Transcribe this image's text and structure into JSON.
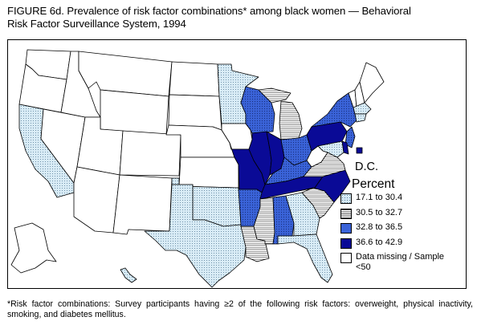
{
  "title": {
    "line1": "FIGURE 6d. Prevalence of risk factor combinations* among black women — Behavioral",
    "line2": "Risk Factor Surveillance System, 1994"
  },
  "dc_label": "D.C.",
  "legend": {
    "title": "Percent",
    "items": [
      {
        "key": "c1",
        "label": "17.1 to 30.4"
      },
      {
        "key": "c2",
        "label": "30.5 to 32.7"
      },
      {
        "key": "c3",
        "label": "32.8 to 36.5"
      },
      {
        "key": "c4",
        "label": "36.6 to 42.9"
      },
      {
        "key": "missing",
        "label": "Data missing / Sample <50"
      }
    ]
  },
  "colors": {
    "c1": "#d6eaf5",
    "c2": "#ffffff",
    "c3": "#3a63d8",
    "c4": "#0a0a96",
    "missing": "#ffffff"
  },
  "state_categories": {
    "WA": "missing",
    "OR": "missing",
    "CA": "c1",
    "NV": "missing",
    "ID": "missing",
    "MT": "missing",
    "WY": "missing",
    "UT": "missing",
    "AZ": "missing",
    "CO": "missing",
    "NM": "missing",
    "ND": "missing",
    "SD": "missing",
    "NE": "missing",
    "KS": "missing",
    "OK": "c1",
    "TX": "c1",
    "MN": "c1",
    "IA": "missing",
    "MO": "c4",
    "AR": "c3",
    "LA": "c2",
    "WI": "c3",
    "IL": "c4",
    "MI": "c2",
    "IN": "c4",
    "OH": "c3",
    "KY": "c3",
    "TN": "c4",
    "MS": "c2",
    "AL": "c3",
    "GA": "c1",
    "FL": "c1",
    "SC": "c2",
    "NC": "c4",
    "VA": "c2",
    "WV": "missing",
    "PA": "c4",
    "NY": "c3",
    "VT": "missing",
    "NH": "missing",
    "ME": "missing",
    "MA": "c1",
    "CT": "c1",
    "NJ": "c3",
    "DE": "c4",
    "MD": "c1",
    "DC": "c4",
    "AK": "missing",
    "HI": "c1"
  },
  "footnote": "*Risk factor combinations: Survey participants having ≥2 of the following risk factors: overweight, physical inactivity, smoking, and diabetes mellitus."
}
